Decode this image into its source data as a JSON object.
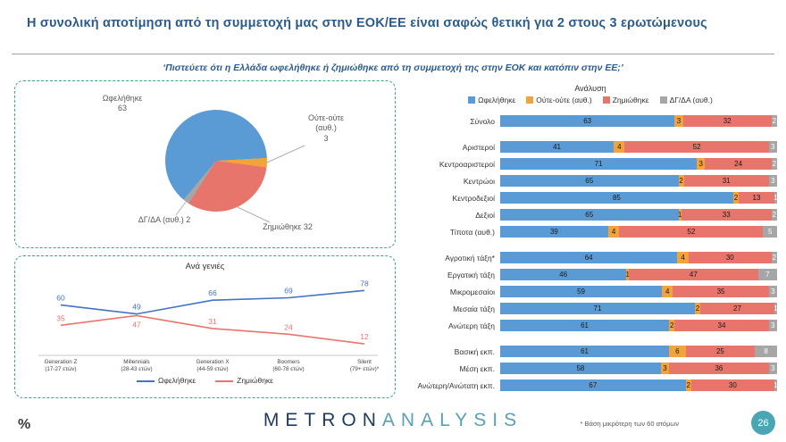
{
  "page": {
    "title": "Η συνολική αποτίμηση από τη συμμετοχή μας στην ΕΟΚ/ΕΕ είναι σαφώς θετική για 2 στους 3 ερωτώμενους",
    "question": "‘Πιστεύετε ότι η Ελλάδα ωφελήθηκε ή ζημιώθηκε από τη συμμετοχή της στην ΕΟΚ και κατόπιν στην ΕΕ;’"
  },
  "footer": {
    "percent_sign": "%",
    "logo_part1": "METRON",
    "logo_part2": "ANALYSIS",
    "footnote": "* Βάση μικρότερη των 60 ατόμων",
    "page_number": "26"
  },
  "colors": {
    "title_blue": "#2A5B8E",
    "panel_border": "#44A08F",
    "benefit_blue": "#5B9BD5",
    "neither_orange": "#F2A33C",
    "harm_salmon": "#E8756B",
    "dk_gray": "#A6A6A6",
    "badge_teal": "#4AA5B5"
  },
  "chart_data": [
    {
      "type": "pie",
      "labels": [
        "Ωφελήθηκε",
        "Ούτε-ούτε (αυθ.)",
        "Ζημιώθηκε",
        "ΔΓ/ΔΑ (αυθ.)"
      ],
      "values": [
        63,
        3,
        32,
        2
      ],
      "colors": [
        "#5B9BD5",
        "#F2A33C",
        "#E8756B",
        "#A6A6A6"
      ],
      "start_angle_deg": 220
    },
    {
      "type": "line",
      "title": "Ανά γενιές",
      "categories": [
        "Generation Z (17-27 ετών)",
        "Millennials (28-43 ετών)",
        "Generation X (44-59 ετών)",
        "Boomers (60-78 ετών)",
        "Silent (79+ ετών)*"
      ],
      "series": [
        {
          "name": "Ωφελήθηκε",
          "color": "#4472C4",
          "values": [
            60,
            49,
            66,
            69,
            78
          ]
        },
        {
          "name": "Ζημιώθηκε",
          "color": "#E8756B",
          "values": [
            35,
            47,
            31,
            24,
            12
          ]
        }
      ],
      "ylim": [
        0,
        85
      ],
      "legend_position": "bottom",
      "grid": false
    },
    {
      "type": "bar",
      "orientation": "horizontal-stacked",
      "title": "Ανάλυση",
      "legend": [
        "Ωφελήθηκε",
        "Ούτε-ούτε (αυθ.)",
        "Ζημιώθηκε",
        "ΔΓ/ΔΑ (αυθ.)"
      ],
      "colors": [
        "#5B9BD5",
        "#F2A33C",
        "#E8756B",
        "#A6A6A6"
      ],
      "groups": [
        {
          "name": "total",
          "rows": [
            {
              "label": "Σύνολο",
              "values": [
                63,
                3,
                32,
                2
              ]
            }
          ]
        },
        {
          "name": "political-placement",
          "rows": [
            {
              "label": "Αριστεροί",
              "values": [
                41,
                4,
                52,
                3
              ]
            },
            {
              "label": "Κεντροαριστεροί",
              "values": [
                71,
                3,
                24,
                2
              ]
            },
            {
              "label": "Κεντρώοι",
              "values": [
                65,
                2,
                31,
                3
              ]
            },
            {
              "label": "Κεντροδεξιοί",
              "values": [
                85,
                2,
                13,
                1
              ]
            },
            {
              "label": "Δεξιοί",
              "values": [
                65,
                1,
                33,
                2
              ]
            },
            {
              "label": "Τίποτα (αυθ.)",
              "values": [
                39,
                4,
                52,
                5
              ]
            }
          ]
        },
        {
          "name": "social-class",
          "rows": [
            {
              "label": "Αγροτική τάξη*",
              "values": [
                64,
                4,
                30,
                2
              ]
            },
            {
              "label": "Εργατική τάξη",
              "values": [
                46,
                1,
                47,
                7
              ]
            },
            {
              "label": "Μικρομεσαίοι",
              "values": [
                59,
                4,
                35,
                3
              ]
            },
            {
              "label": "Μεσαία τάξη",
              "values": [
                71,
                2,
                27,
                1
              ]
            },
            {
              "label": "Ανώτερη τάξη",
              "values": [
                61,
                2,
                34,
                3
              ]
            }
          ]
        },
        {
          "name": "education",
          "rows": [
            {
              "label": "Βασική εκπ.",
              "values": [
                61,
                6,
                25,
                8
              ]
            },
            {
              "label": "Μέση εκπ.",
              "values": [
                58,
                3,
                36,
                3
              ]
            },
            {
              "label": "Ανώτερη/Ανώτατη εκπ.",
              "values": [
                67,
                2,
                30,
                1
              ]
            }
          ]
        }
      ]
    }
  ]
}
